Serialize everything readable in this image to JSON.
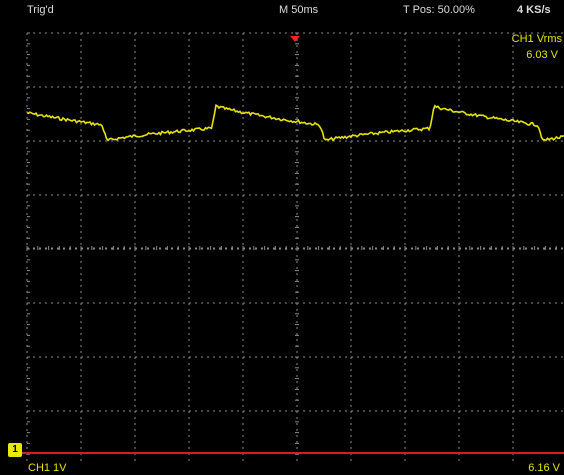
{
  "header": {
    "trig_status": "Trig'd",
    "timebase": "M 50ms",
    "trigger_position": "T Pos: 50.00%",
    "sample_rate": "4 KS/s"
  },
  "measurement": {
    "label": "CH1 Vrms",
    "value": "6.03 V"
  },
  "footer": {
    "channel_scale": "CH1  1V",
    "value": "6.16 V"
  },
  "channel_marker": "1",
  "colors": {
    "trace": "#e6e300",
    "grid": "#8a8a8a",
    "trigger": "#ff2020",
    "ground_line": "#d02020"
  }
}
